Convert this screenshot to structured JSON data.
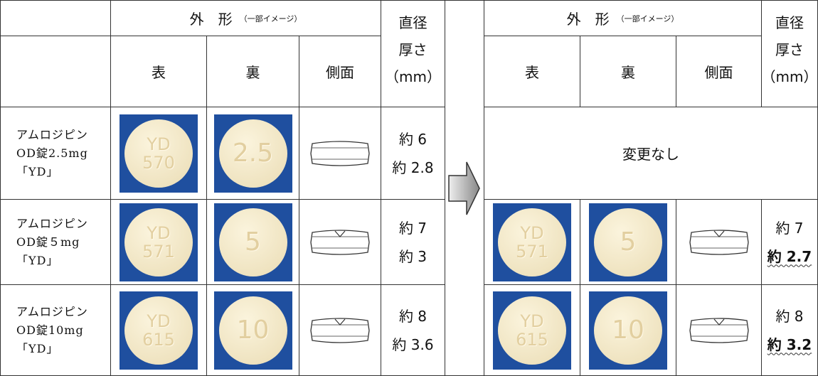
{
  "header": {
    "shape": "外　形",
    "shape_note": "（一部イメージ）",
    "front": "表",
    "back": "裏",
    "side": "側面",
    "diameter": "直径",
    "thickness": "厚さ",
    "unit": "（mm）"
  },
  "rows": [
    {
      "name": [
        "アムロジピン",
        "OD錠2.5mg",
        "「YD」"
      ],
      "before": {
        "front": [
          "YD",
          "570"
        ],
        "back": [
          "2.5"
        ],
        "diameter": "約 6",
        "thickness": "約 2.8"
      },
      "after": {
        "text": "変更なし"
      }
    },
    {
      "name": [
        "アムロジピン",
        "OD錠５mg",
        "「YD」"
      ],
      "before": {
        "front": [
          "YD",
          "571"
        ],
        "back": [
          "5"
        ],
        "diameter": "約 7",
        "thickness": "約 3"
      },
      "after": {
        "front": [
          "YD",
          "571"
        ],
        "back": [
          "5"
        ],
        "diameter": "約 7",
        "thickness": "約 2.7"
      }
    },
    {
      "name": [
        "アムロジピン",
        "OD錠10mg",
        "「YD」"
      ],
      "before": {
        "front": [
          "YD",
          "615"
        ],
        "back": [
          "10"
        ],
        "diameter": "約 8",
        "thickness": "約 3.6"
      },
      "after": {
        "front": [
          "YD",
          "615"
        ],
        "back": [
          "10"
        ],
        "diameter": "約 8",
        "thickness": "約 3.2"
      }
    }
  ]
}
